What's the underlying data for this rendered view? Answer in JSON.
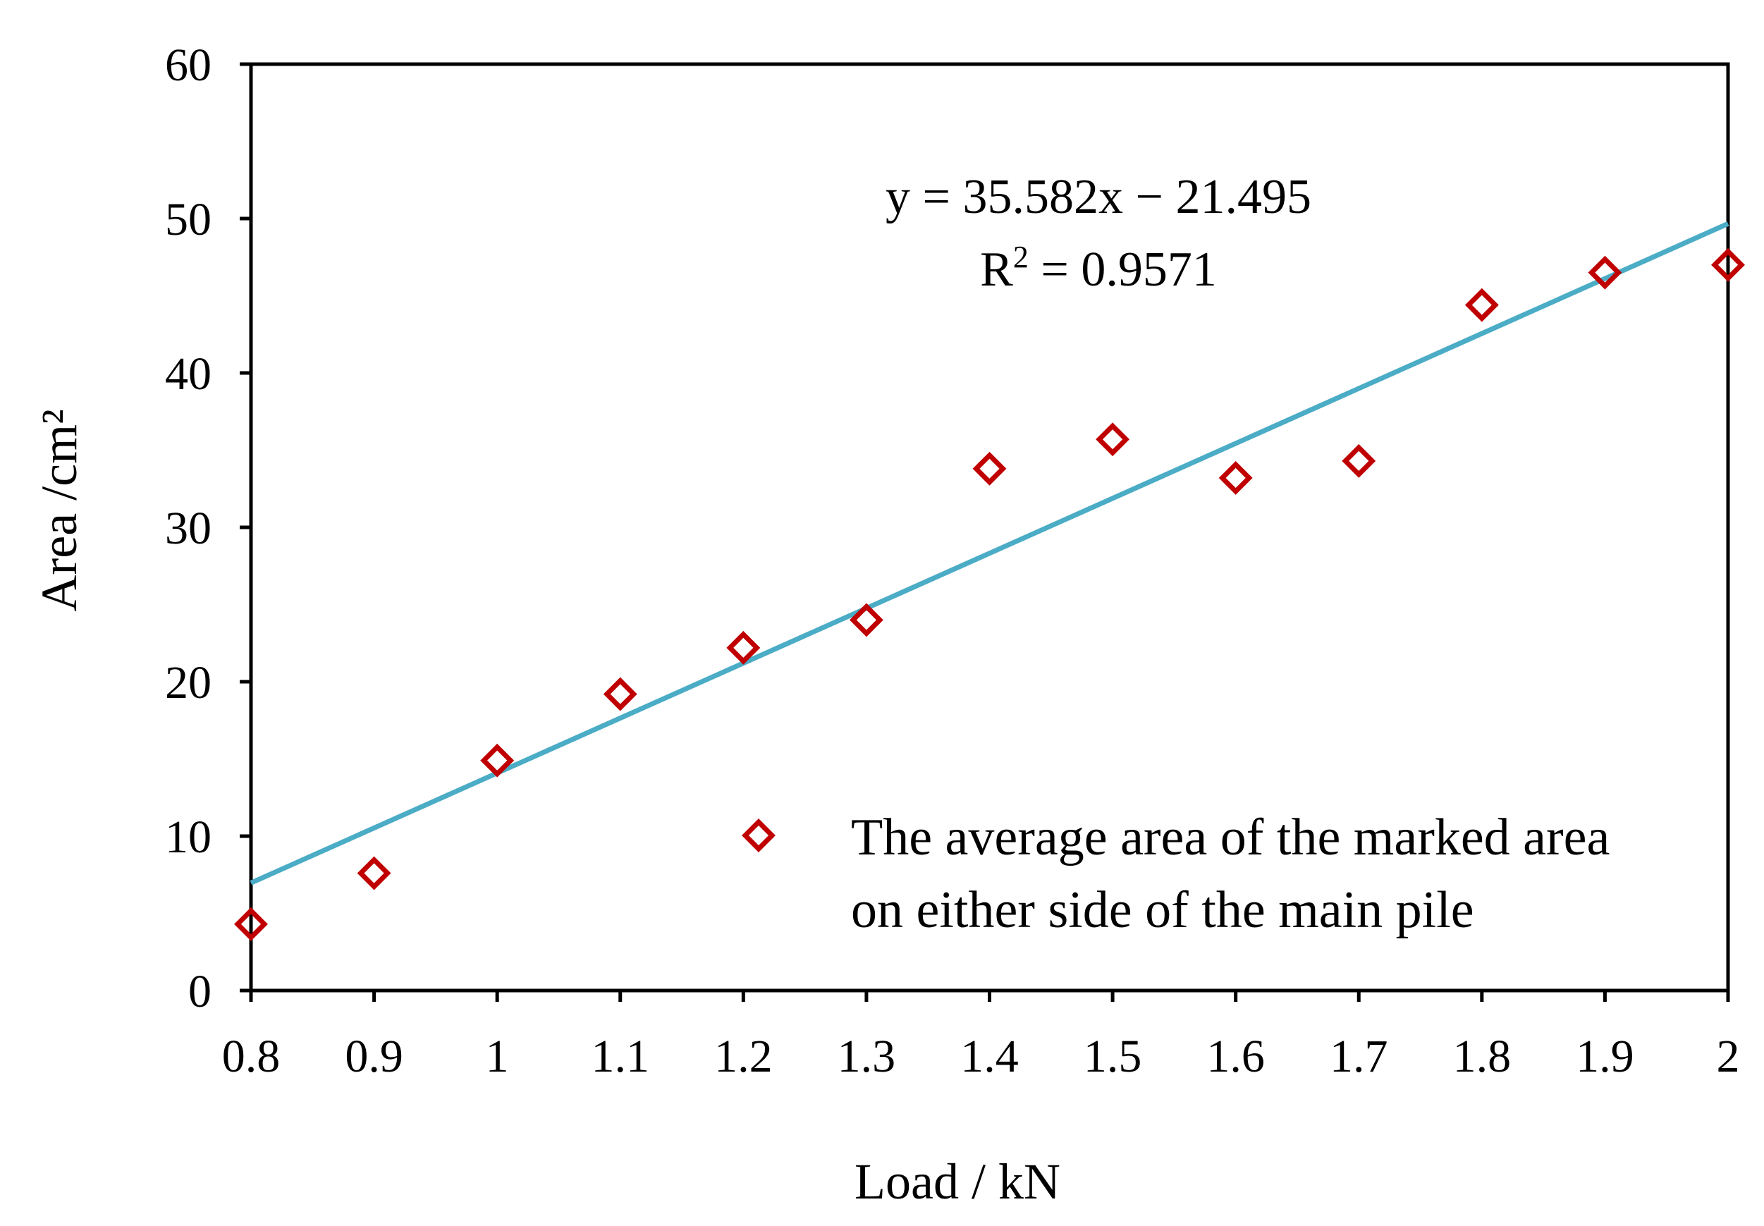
{
  "chart_data": {
    "type": "scatter",
    "xlabel": "Load / kN",
    "ylabel": "Area /cm²",
    "xlim": [
      0.8,
      2.0
    ],
    "ylim": [
      0,
      60
    ],
    "x_ticks": [
      0.8,
      0.9,
      1.0,
      1.1,
      1.2,
      1.3,
      1.4,
      1.5,
      1.6,
      1.7,
      1.8,
      1.9,
      2.0
    ],
    "x_tick_labels": [
      "0.8",
      "0.9",
      "1",
      "1.1",
      "1.2",
      "1.3",
      "1.4",
      "1.5",
      "1.6",
      "1.7",
      "1.8",
      "1.9",
      "2"
    ],
    "y_ticks": [
      0,
      10,
      20,
      30,
      40,
      50,
      60
    ],
    "y_tick_labels": [
      "0",
      "10",
      "20",
      "30",
      "40",
      "50",
      "60"
    ],
    "grid": false,
    "series": [
      {
        "name": "The average area of the marked area on either side of the main pile",
        "legend_lines": [
          "The average area of the marked area",
          "on either side of the main pile"
        ],
        "marker": "diamond-open",
        "color": "#c00000",
        "x": [
          0.8,
          0.9,
          1.0,
          1.1,
          1.2,
          1.3,
          1.4,
          1.5,
          1.6,
          1.7,
          1.8,
          1.9,
          2.0
        ],
        "y": [
          4.3,
          7.6,
          14.9,
          19.2,
          22.2,
          24.0,
          33.8,
          35.7,
          33.2,
          34.3,
          44.4,
          46.5,
          47.0
        ]
      }
    ],
    "trendline": {
      "type": "linear",
      "slope": 35.582,
      "intercept": -21.495,
      "color": "#4bacc6",
      "equation_text": "y = 35.582x − 21.495",
      "r2_prefix": "R",
      "r2_sup": "2",
      "r2_suffix": " = 0.9571"
    },
    "legend_position": "bottom-right"
  }
}
